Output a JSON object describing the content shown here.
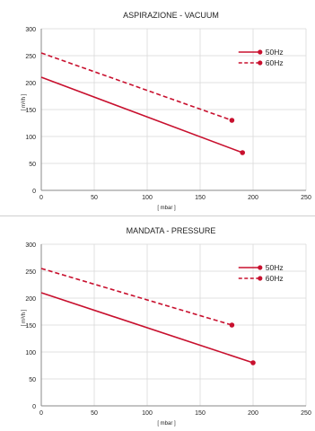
{
  "chart_data": [
    {
      "type": "line",
      "title": "ASPIRAZIONE - VACUUM",
      "xlabel": "[ mbar ]",
      "ylabel": "[ m³/h ]",
      "xlim": [
        0,
        250
      ],
      "ylim": [
        0,
        300
      ],
      "xticks": [
        0,
        50,
        100,
        150,
        200,
        250
      ],
      "yticks": [
        0,
        50,
        100,
        150,
        200,
        250,
        300
      ],
      "grid": true,
      "legend_position": "top-right",
      "series": [
        {
          "name": "50Hz",
          "style": "solid",
          "color": "#c8102e",
          "x": [
            0,
            190
          ],
          "y": [
            210,
            70
          ]
        },
        {
          "name": "60Hz",
          "style": "dashed",
          "color": "#c8102e",
          "x": [
            0,
            180
          ],
          "y": [
            255,
            130
          ]
        }
      ]
    },
    {
      "type": "line",
      "title": "MANDATA - PRESSURE",
      "xlabel": "[ mbar ]",
      "ylabel": "[ m³/h ]",
      "xlim": [
        0,
        250
      ],
      "ylim": [
        0,
        300
      ],
      "xticks": [
        0,
        50,
        100,
        150,
        200,
        250
      ],
      "yticks": [
        0,
        50,
        100,
        150,
        200,
        250,
        300
      ],
      "grid": true,
      "legend_position": "top-right",
      "series": [
        {
          "name": "50Hz",
          "style": "solid",
          "color": "#c8102e",
          "x": [
            0,
            200
          ],
          "y": [
            210,
            80
          ]
        },
        {
          "name": "60Hz",
          "style": "dashed",
          "color": "#c8102e",
          "x": [
            0,
            180
          ],
          "y": [
            255,
            150
          ]
        }
      ]
    }
  ]
}
